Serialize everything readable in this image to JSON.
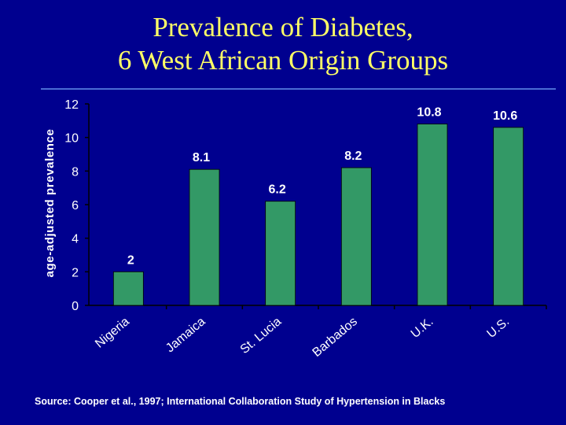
{
  "title": {
    "line1": "Prevalence of Diabetes,",
    "line2": "6 West African Origin Groups"
  },
  "source": "Source: Cooper et al., 1997; International Collaboration Study of Hypertension in Blacks",
  "colors": {
    "background": "#00008f",
    "title": "#ffff66",
    "bar": "#339966",
    "text": "#ffffff",
    "divider": "#4a6cd4"
  },
  "chart_data": {
    "type": "bar",
    "title": "Prevalence of Diabetes, 6 West African Origin Groups",
    "ylabel": "age-adjusted prevalence",
    "xlabel": "",
    "categories": [
      "Nigeria",
      "Jamaica",
      "St. Lucia",
      "Barbados",
      "U.K.",
      "U.S."
    ],
    "values": [
      2,
      8.1,
      6.2,
      8.2,
      10.8,
      10.6
    ],
    "data_labels": [
      "2",
      "8.1",
      "6.2",
      "8.2",
      "10.8",
      "10.6"
    ],
    "ylim": [
      0,
      12
    ],
    "yticks": [
      0,
      2,
      4,
      6,
      8,
      10,
      12
    ],
    "grid": false,
    "legend": "none"
  }
}
